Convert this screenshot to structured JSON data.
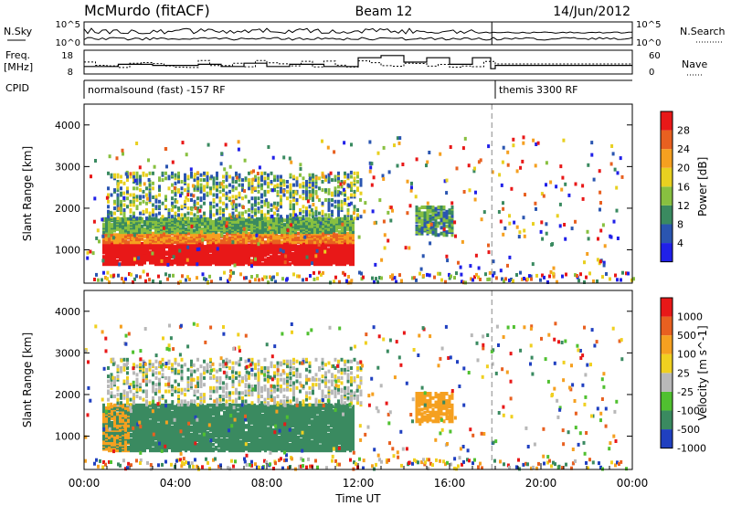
{
  "header": {
    "station": "McMurdo (fitACF)",
    "beam": "Beam 12",
    "date": "14/Jun/2012"
  },
  "top_panels": {
    "nsky_label": "N.Sky",
    "nsky_ticks": [
      "10^5",
      "10^0"
    ],
    "nsearch_label": "N.Search",
    "nsearch_ticks": [
      "10^5",
      "10^0"
    ],
    "freq_label": "Freq.",
    "freq_unit": "[MHz]",
    "freq_ticks": [
      "18",
      "8"
    ],
    "nave_label": "Nave",
    "nave_ticks": [
      "60",
      "0"
    ],
    "cpid_label": "CPID",
    "cpid_modes": [
      {
        "name": "normalsound (fast) -157 RF",
        "start_hour": 0,
        "end_hour": 18
      },
      {
        "name": "themis 3300 RF",
        "start_hour": 18,
        "end_hour": 24
      }
    ],
    "freq_steps": [
      {
        "t": 0,
        "f": 11
      },
      {
        "t": 1.5,
        "f": 12
      },
      {
        "t": 3,
        "f": 11.5
      },
      {
        "t": 5,
        "f": 12
      },
      {
        "t": 6,
        "f": 11
      },
      {
        "t": 7,
        "f": 12.5
      },
      {
        "t": 8,
        "f": 11
      },
      {
        "t": 9,
        "f": 12
      },
      {
        "t": 10.5,
        "f": 11
      },
      {
        "t": 12,
        "f": 15
      },
      {
        "t": 13,
        "f": 16
      },
      {
        "t": 14,
        "f": 13
      },
      {
        "t": 15,
        "f": 15
      },
      {
        "t": 16,
        "f": 12
      },
      {
        "t": 17,
        "f": 15
      },
      {
        "t": 17.8,
        "f": 10
      },
      {
        "t": 18,
        "f": 11.5
      },
      {
        "t": 24,
        "f": 11.5
      }
    ]
  },
  "chart_data": [
    {
      "type": "heatmap",
      "title": "Power",
      "ylabel": "Slant Range [km]",
      "colorbar_label": "Power [dB]",
      "colorbar_ticks": [
        "4",
        "8",
        "12",
        "16",
        "20",
        "24",
        "28"
      ],
      "colorbar_colors": [
        "#2020e8",
        "#2a55b0",
        "#3a8a60",
        "#88c040",
        "#e8d020",
        "#f5a020",
        "#e86020",
        "#e81818"
      ],
      "xlim": [
        0,
        24
      ],
      "ylim": [
        200,
        4500
      ],
      "yticks": [
        1000,
        2000,
        3000,
        4000
      ],
      "echo_regions": [
        {
          "t0": 0.8,
          "t1": 11.5,
          "r0": 700,
          "r1": 1300,
          "level": "28+"
        },
        {
          "t0": 0.8,
          "t1": 12.0,
          "r0": 1300,
          "r1": 1700,
          "level": "20-24"
        },
        {
          "t0": 1.0,
          "t1": 12.0,
          "r0": 1800,
          "r1": 2800,
          "level": "8-16"
        },
        {
          "t0": 14.5,
          "t1": 16.0,
          "r0": 1500,
          "r1": 2100,
          "level": "8-16"
        }
      ]
    },
    {
      "type": "heatmap",
      "title": "Velocity",
      "ylabel": "Slant Range [km]",
      "xlabel": "Time UT",
      "colorbar_label": "Velocity [m s^-1]",
      "colorbar_ticks": [
        "1000",
        "500",
        "100",
        "25",
        "-25",
        "-100",
        "-500",
        "-1000"
      ],
      "colorbar_colors": [
        "#2040c0",
        "#3a8a60",
        "#50c030",
        "#b8b8b8",
        "#f0d020",
        "#f5a020",
        "#e86020",
        "#e81818"
      ],
      "xlim": [
        0,
        24
      ],
      "xticks": [
        "00:00",
        "04:00",
        "08:00",
        "12:00",
        "16:00",
        "20:00",
        "00:00"
      ],
      "ylim": [
        200,
        4500
      ],
      "yticks": [
        1000,
        2000,
        3000,
        4000
      ],
      "echo_regions": [
        {
          "t0": 0.8,
          "t1": 11.5,
          "r0": 700,
          "r1": 1800,
          "level": "100-500"
        },
        {
          "t0": 0.8,
          "t1": 2.0,
          "r0": 900,
          "r1": 1800,
          "level": "-100 to -500"
        },
        {
          "t0": 1.5,
          "t1": 12.0,
          "r0": 1800,
          "r1": 2800,
          "level": "-25 to 25"
        },
        {
          "t0": 14.5,
          "t1": 16.0,
          "r0": 1400,
          "r1": 2100,
          "level": "-100 to -500"
        }
      ]
    }
  ]
}
